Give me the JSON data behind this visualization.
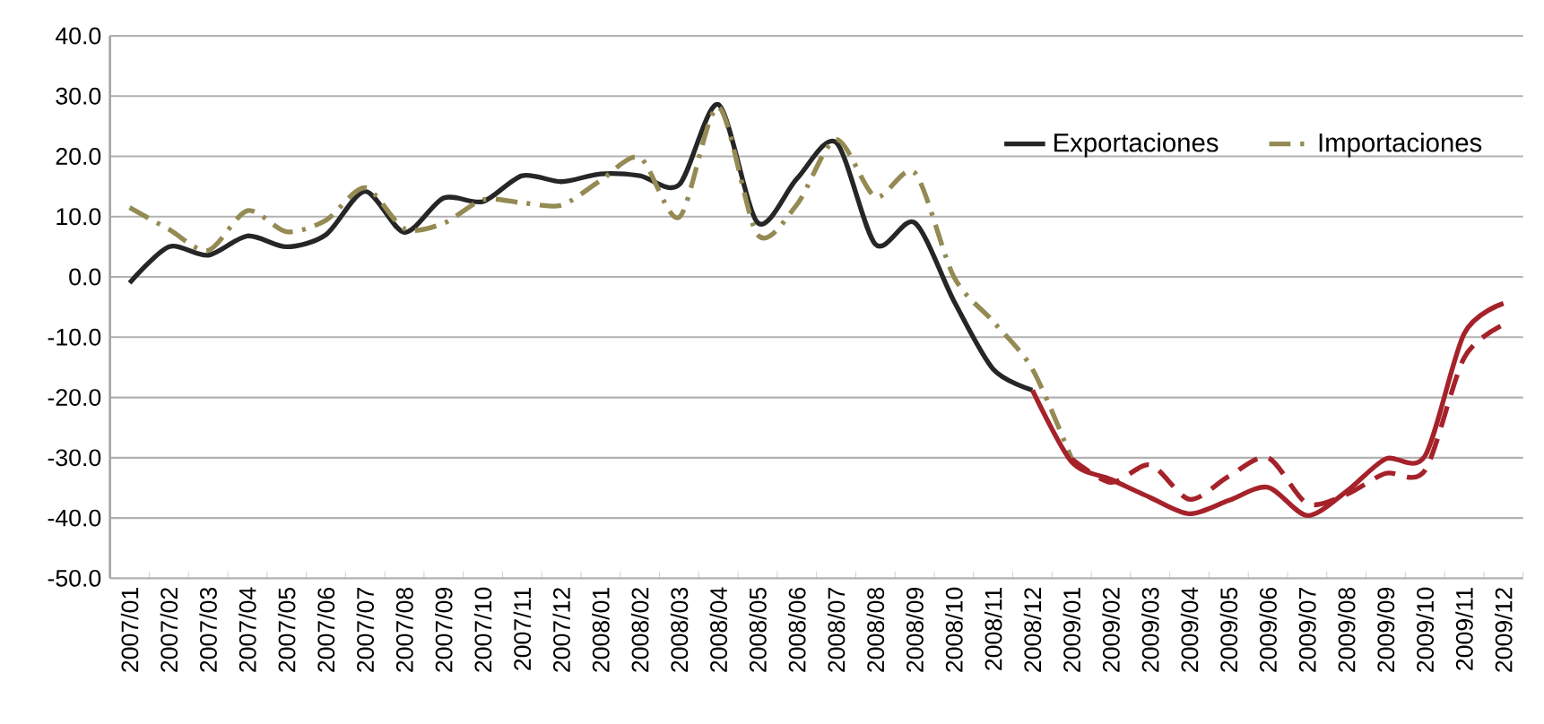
{
  "chart_data": {
    "type": "line",
    "categories": [
      "2007/01",
      "2007/02",
      "2007/03",
      "2007/04",
      "2007/05",
      "2007/06",
      "2007/07",
      "2007/08",
      "2007/09",
      "2007/10",
      "2007/11",
      "2007/12",
      "2008/01",
      "2008/02",
      "2008/03",
      "2008/04",
      "2008/05",
      "2008/06",
      "2008/07",
      "2008/08",
      "2008/09",
      "2008/10",
      "2008/11",
      "2008/12",
      "2009/01",
      "2009/02",
      "2009/03",
      "2009/04",
      "2009/05",
      "2009/06",
      "2009/07",
      "2009/08",
      "2009/09",
      "2009/10",
      "2009/11",
      "2009/12"
    ],
    "series": [
      {
        "name": "Exportaciones",
        "color": "#262626",
        "line_style": "solid",
        "values": [
          -1,
          5,
          3.6,
          6.8,
          5,
          7,
          14.2,
          7.4,
          13.1,
          12.5,
          16.8,
          15.8,
          17.1,
          16.8,
          15.3,
          28.6,
          9,
          16.3,
          22.3,
          5.4,
          9,
          -4,
          -15.3,
          -18.8,
          null,
          null,
          null,
          null,
          null,
          null,
          null,
          null,
          null,
          null,
          null,
          null
        ]
      },
      {
        "name": "Importaciones",
        "color": "#948a54",
        "line_style": "dashdot",
        "values": [
          11.5,
          7.9,
          4.4,
          11,
          7.5,
          9.4,
          14.8,
          8,
          8.9,
          12.8,
          12.3,
          11.9,
          16,
          19.8,
          9.9,
          28.2,
          7,
          12,
          22.8,
          13.3,
          17.3,
          0,
          -7.4,
          -15.3,
          -30.2,
          null,
          null,
          null,
          null,
          null,
          null,
          null,
          null,
          null,
          null,
          null
        ]
      },
      {
        "color": "#a5222a",
        "line_style": "solid",
        "values": [
          null,
          null,
          null,
          null,
          null,
          null,
          null,
          null,
          null,
          null,
          null,
          null,
          null,
          null,
          null,
          null,
          null,
          null,
          null,
          null,
          null,
          null,
          null,
          -18.8,
          -30.7,
          -33.6,
          -36.6,
          -39.3,
          -37.1,
          -34.9,
          -39.6,
          -35.6,
          -30.2,
          -29.7,
          -9.4,
          -4.4
        ]
      },
      {
        "color": "#a5222a",
        "line_style": "dashed",
        "values": [
          null,
          null,
          null,
          null,
          null,
          null,
          null,
          null,
          null,
          null,
          null,
          null,
          null,
          null,
          null,
          null,
          null,
          null,
          null,
          null,
          null,
          null,
          null,
          null,
          -30.2,
          -34.1,
          -31.2,
          -36.9,
          -33.1,
          -30,
          -37.6,
          -36.1,
          -32.6,
          -32.1,
          -13.4,
          -7.9
        ]
      }
    ],
    "ylim": [
      -50,
      40
    ],
    "yticks": [
      {
        "value": -50,
        "label": "-50.0"
      },
      {
        "value": -40,
        "label": "-40.0"
      },
      {
        "value": -30,
        "label": "-30.0"
      },
      {
        "value": -20,
        "label": "-20.0"
      },
      {
        "value": -10,
        "label": "-10.0"
      },
      {
        "value": 0,
        "label": "0.0"
      },
      {
        "value": 10,
        "label": "10.0"
      },
      {
        "value": 20,
        "label": "20.0"
      },
      {
        "value": 30,
        "label": "30.0"
      },
      {
        "value": 40,
        "label": "40.0"
      }
    ],
    "grid": "y",
    "legend": "top right",
    "marker": "none"
  }
}
